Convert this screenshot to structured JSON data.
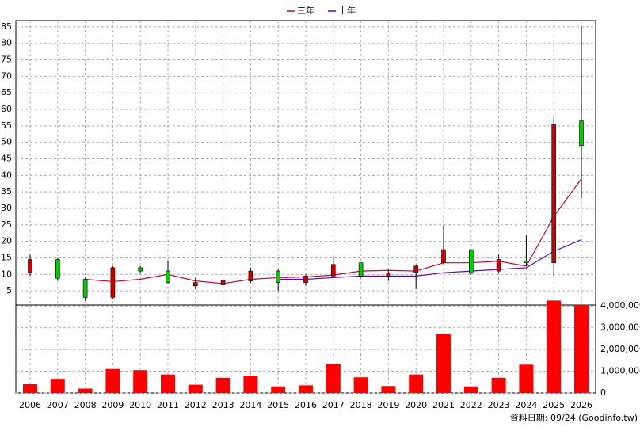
{
  "chart_data": {
    "type": "candlestick",
    "categories": [
      "2006",
      "2007",
      "2008",
      "2009",
      "2010",
      "2011",
      "2012",
      "2013",
      "2014",
      "2015",
      "2016",
      "2017",
      "2018",
      "2019",
      "2020",
      "2021",
      "2022",
      "2023",
      "2024",
      "2025",
      "2026"
    ],
    "open": [
      10.5,
      14.5,
      8.5,
      3,
      12,
      11,
      6.5,
      6.8,
      8,
      11,
      7.5,
      9.5,
      13.5,
      9.5,
      10.5,
      13.5,
      17.5,
      11,
      14,
      13.5,
      56.5
    ],
    "close": [
      14.5,
      8.8,
      3,
      12,
      11,
      7.5,
      7.5,
      8.2,
      11,
      7.5,
      9.5,
      13,
      9.5,
      10.5,
      12.5,
      17.5,
      10.5,
      14.5,
      13.5,
      55.5,
      49
    ],
    "high": [
      16,
      15,
      9,
      12.5,
      12.5,
      14,
      9,
      8.8,
      12,
      11.5,
      10,
      15.5,
      13.5,
      11.5,
      13,
      25,
      17.5,
      16,
      22,
      57.5,
      85
    ],
    "low": [
      9.5,
      8,
      2,
      2.5,
      10.5,
      7,
      5.5,
      6.5,
      7.5,
      5,
      6.5,
      9,
      9,
      8,
      5.5,
      13,
      10,
      10.5,
      12.5,
      9.5,
      33
    ],
    "up_color": "#cc0000",
    "down_color": "#00cc00",
    "ylim": [
      0.7,
      86.9
    ],
    "yticks": [
      5,
      10,
      15,
      20,
      25,
      30,
      35,
      40,
      45,
      50,
      55,
      60,
      65,
      70,
      75,
      80,
      85
    ],
    "grid": true,
    "series": [
      {
        "name": "三年",
        "color": "#cc0033",
        "values": [
          null,
          null,
          8.5,
          7.8,
          8.5,
          10,
          8,
          7.2,
          8.5,
          9,
          9.2,
          9.8,
          11,
          11.2,
          11,
          13.5,
          13.5,
          14,
          12.5,
          27.5,
          39
        ]
      },
      {
        "name": "十年",
        "color": "#6600cc",
        "values": [
          null,
          null,
          null,
          null,
          null,
          null,
          null,
          null,
          null,
          8.5,
          8.5,
          9,
          9.5,
          9.5,
          9.5,
          10.5,
          11,
          11.5,
          12,
          17,
          20.5
        ]
      }
    ],
    "volume": {
      "color": "#ff0000",
      "values": [
        400000,
        650000,
        200000,
        1100000,
        1050000,
        850000,
        380000,
        700000,
        800000,
        300000,
        350000,
        1350000,
        720000,
        320000,
        850000,
        2700000,
        300000,
        700000,
        1300000,
        4250000,
        4050000
      ],
      "ylim": [
        0,
        4300000
      ],
      "yticks": [
        0,
        {
          "value": 1000000,
          "label": "1,000,000"
        },
        {
          "value": 2000000,
          "label": "2,000,000"
        },
        {
          "value": 3000000,
          "label": "3,000,000"
        },
        {
          "value": 4000000,
          "label": "4,000,000"
        }
      ]
    },
    "footer": "資料日期: 09/24   (Goodinfo.tw)"
  }
}
